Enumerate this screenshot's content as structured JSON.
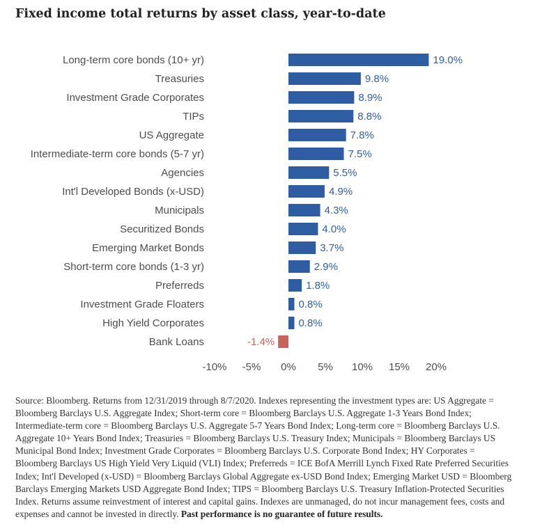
{
  "title": "Fixed income total returns by asset class, year-to-date",
  "chart_data": {
    "type": "bar",
    "orientation": "horizontal",
    "categories": [
      "Long-term core bonds (10+ yr)",
      "Treasuries",
      "Investment Grade Corporates",
      "TIPs",
      "US Aggregate",
      "Intermediate-term core bonds (5-7 yr)",
      "Agencies",
      "Int'l Developed Bonds (x-USD)",
      "Municipals",
      "Securitized Bonds",
      "Emerging Market Bonds",
      "Short-term core bonds (1-3 yr)",
      "Preferreds",
      "Investment Grade Floaters",
      "High Yield Corporates",
      "Bank Loans"
    ],
    "values": [
      19.0,
      9.8,
      8.9,
      8.8,
      7.8,
      7.5,
      5.5,
      4.9,
      4.3,
      4.0,
      3.7,
      2.9,
      1.8,
      0.8,
      0.8,
      -1.4
    ],
    "value_labels": [
      "19.0%",
      "9.8%",
      "8.9%",
      "8.8%",
      "7.8%",
      "7.5%",
      "5.5%",
      "4.9%",
      "4.3%",
      "4.0%",
      "3.7%",
      "2.9%",
      "1.8%",
      "0.8%",
      "0.8%",
      "-1.4%"
    ],
    "xticks": [
      -10,
      -5,
      0,
      5,
      10,
      15,
      20
    ],
    "xtick_labels": [
      "-10%",
      "-5%",
      "0%",
      "5%",
      "10%",
      "15%",
      "20%"
    ],
    "xlim": [
      -10,
      20
    ],
    "grid": false,
    "colors": {
      "positive": "#2e5da4",
      "negative": "#c8645a",
      "positive_label": "#2e5da4",
      "negative_label": "#c8645a"
    }
  },
  "footnote": {
    "text": "Source: Bloomberg. Returns from 12/31/2019 through 8/7/2020. Indexes representing the investment types are: US Aggregate = Bloomberg Barclays U.S. Aggregate Index; Short-term core = Bloomberg Barclays U.S. Aggregate 1-3 Years Bond Index; Intermediate-term core = Bloomberg Barclays U.S. Aggregate 5-7 Years Bond Index; Long-term core = Bloomberg Barclays U.S. Aggregate 10+ Years Bond Index; Treasuries = Bloomberg Barclays U.S. Treasury Index; Municipals = Bloomberg Barclays US Municipal Bond Index; Investment Grade Corporates = Bloomberg Barclays U.S. Corporate Bond Index; HY Corporates = Bloomberg Barclays US High Yield Very Liquid (VLI) Index; Preferreds = ICE BofA Merrill Lynch Fixed Rate Preferred Securities Index; Int'l Developed (x-USD) = Bloomberg Barclays Global Aggregate ex-USD Bond Index; Emerging Market USD = Bloomberg Barclays Emerging Markets USD Aggregate Bond Index; TIPS = Bloomberg Barclays U.S. Treasury Inflation-Protected Securities Index. Returns assume reinvestment of interest and capital gains. Indexes are unmanaged, do not incur management fees, costs and expenses and cannot be invested in directly.",
    "bold": "Past performance is no guarantee of future results."
  }
}
